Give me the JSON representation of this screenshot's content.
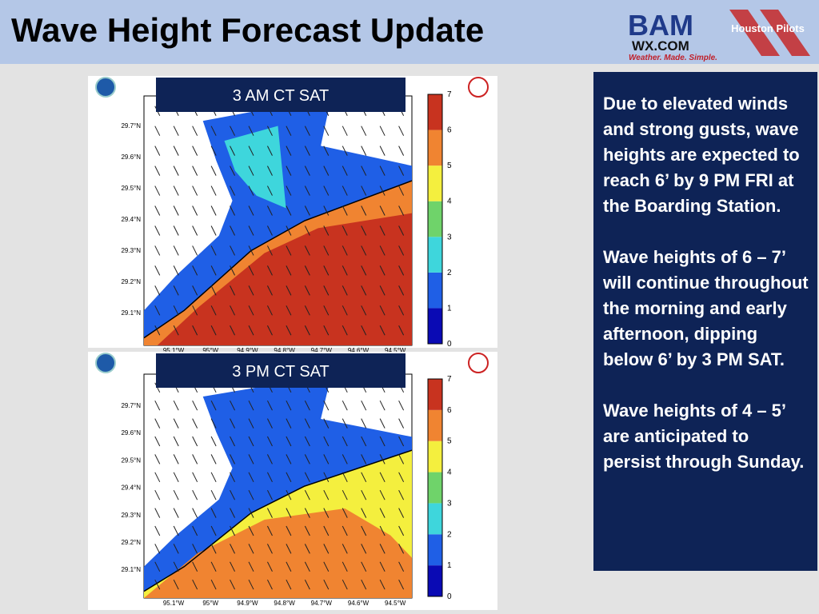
{
  "header": {
    "title": "Wave Height Forecast Update",
    "logo_bam": "BAM",
    "logo_wx": "WX.COM",
    "logo_tagline": "Weather. Made. Simple.",
    "logo_pilots": "Houston Pilots"
  },
  "maps": [
    {
      "label": "3 AM CT SAT"
    },
    {
      "label": "3 PM CT SAT"
    }
  ],
  "map_axes": {
    "lat_labels": [
      "29.7°N",
      "29.6°N",
      "29.5°N",
      "29.4°N",
      "29.3°N",
      "29.2°N",
      "29.1°N"
    ],
    "lon_labels": [
      "95.1°W",
      "95°W",
      "94.9°W",
      "94.8°W",
      "94.7°W",
      "94.6°W",
      "94.5°W"
    ],
    "colorbar_ticks": [
      "0",
      "1",
      "2",
      "3",
      "4",
      "5",
      "6",
      "7"
    ]
  },
  "sidebar": {
    "paragraphs": [
      "Due to elevated winds and strong gusts, wave heights are expected to reach 6’ by 9 PM FRI at the Boarding Station.",
      "Wave heights of 6 – 7’ will continue throughout the morning and early afternoon, dipping below 6’ by 3 PM SAT.",
      "Wave heights of 4 – 5’ are anticipated to persist through Sunday."
    ]
  }
}
